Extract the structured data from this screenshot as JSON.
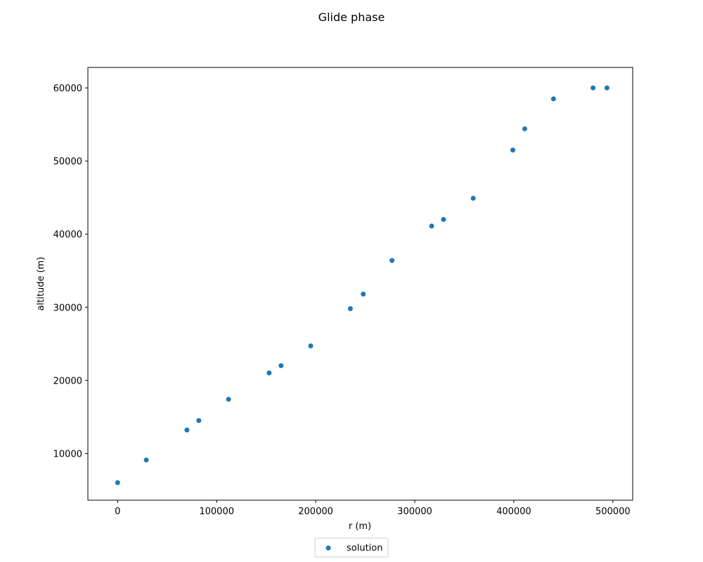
{
  "chart_data": {
    "type": "scatter",
    "title": "Glide phase",
    "xlabel": "r (m)",
    "ylabel": "altitude (m)",
    "xlim": [
      -30000,
      520000
    ],
    "ylim": [
      3600,
      62800
    ],
    "xticks": [
      0,
      100000,
      200000,
      300000,
      400000,
      500000
    ],
    "yticks": [
      10000,
      20000,
      30000,
      40000,
      50000,
      60000
    ],
    "grid": false,
    "legend": "lower-center-outside",
    "series": [
      {
        "name": "solution",
        "color": "#1f77b4",
        "points": [
          [
            0,
            6000
          ],
          [
            29000,
            9100
          ],
          [
            70000,
            13200
          ],
          [
            82000,
            14500
          ],
          [
            112000,
            17400
          ],
          [
            153000,
            21000
          ],
          [
            165000,
            22000
          ],
          [
            195000,
            24700
          ],
          [
            235000,
            29800
          ],
          [
            248000,
            31800
          ],
          [
            277000,
            36400
          ],
          [
            317000,
            41100
          ],
          [
            329000,
            42000
          ],
          [
            359000,
            44900
          ],
          [
            399000,
            51500
          ],
          [
            411000,
            54400
          ],
          [
            440000,
            58500
          ],
          [
            480000,
            60000
          ],
          [
            494000,
            60000
          ]
        ]
      }
    ]
  }
}
